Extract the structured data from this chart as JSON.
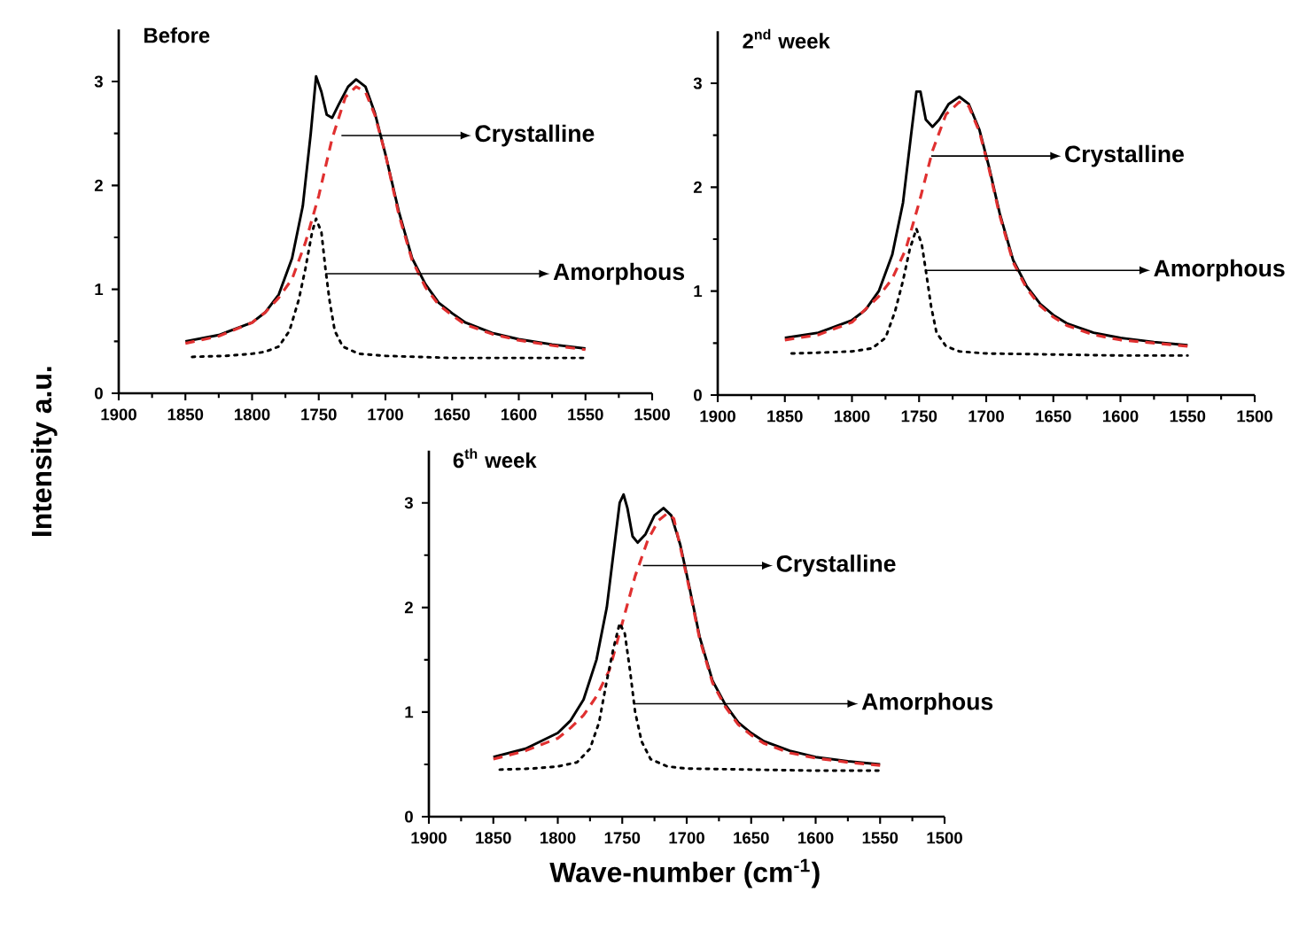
{
  "chart_data": [
    {
      "type": "line",
      "title": "Before",
      "ylabel": "Intensity a.u.",
      "xlim": [
        1900,
        1500
      ],
      "ylim": [
        0,
        3.5
      ],
      "xticks": [
        1900,
        1850,
        1800,
        1750,
        1700,
        1650,
        1600,
        1550,
        1500
      ],
      "yticks": [
        0,
        1,
        2,
        3
      ],
      "series": [
        {
          "color": "#000000",
          "line_style": "solid",
          "x": [
            1850,
            1825,
            1800,
            1790,
            1780,
            1770,
            1762,
            1756,
            1752,
            1748,
            1744,
            1740,
            1735,
            1728,
            1722,
            1715,
            1708,
            1700,
            1690,
            1680,
            1670,
            1660,
            1650,
            1640,
            1620,
            1600,
            1575,
            1550
          ],
          "values": [
            0.5,
            0.56,
            0.68,
            0.78,
            0.95,
            1.3,
            1.8,
            2.5,
            3.05,
            2.9,
            2.68,
            2.65,
            2.78,
            2.95,
            3.02,
            2.95,
            2.7,
            2.3,
            1.75,
            1.3,
            1.05,
            0.87,
            0.77,
            0.68,
            0.58,
            0.52,
            0.47,
            0.43
          ]
        },
        {
          "color": "#e03030",
          "line_style": "dashed",
          "x": [
            1850,
            1825,
            1800,
            1790,
            1780,
            1770,
            1760,
            1750,
            1740,
            1730,
            1722,
            1715,
            1708,
            1700,
            1690,
            1680,
            1670,
            1660,
            1650,
            1640,
            1620,
            1600,
            1575,
            1550
          ],
          "values": [
            0.48,
            0.55,
            0.68,
            0.78,
            0.92,
            1.1,
            1.45,
            1.9,
            2.45,
            2.85,
            2.95,
            2.9,
            2.68,
            2.3,
            1.72,
            1.28,
            1.02,
            0.85,
            0.75,
            0.66,
            0.57,
            0.51,
            0.46,
            0.42
          ]
        },
        {
          "color": "#000000",
          "line_style": "dotted",
          "x": [
            1845,
            1820,
            1800,
            1790,
            1780,
            1772,
            1765,
            1760,
            1755,
            1752,
            1748,
            1745,
            1742,
            1738,
            1732,
            1720,
            1700,
            1650,
            1600,
            1550
          ],
          "values": [
            0.35,
            0.36,
            0.38,
            0.4,
            0.45,
            0.6,
            0.9,
            1.2,
            1.55,
            1.68,
            1.55,
            1.2,
            0.9,
            0.6,
            0.45,
            0.38,
            0.36,
            0.34,
            0.34,
            0.34
          ]
        }
      ],
      "annotations": [
        {
          "text": "Crystalline",
          "x": 1733,
          "y": 2.48
        },
        {
          "text": "Amorphous",
          "x": 1745,
          "y": 1.15
        }
      ]
    },
    {
      "type": "line",
      "title": "2$^{nd}$ week",
      "xlim": [
        1900,
        1500
      ],
      "ylim": [
        0,
        3.5
      ],
      "xticks": [
        1900,
        1850,
        1800,
        1750,
        1700,
        1650,
        1600,
        1550,
        1500
      ],
      "yticks": [
        0,
        1,
        2,
        3
      ],
      "series": [
        {
          "color": "#000000",
          "line_style": "solid",
          "x": [
            1850,
            1825,
            1800,
            1790,
            1780,
            1770,
            1762,
            1756,
            1752,
            1749,
            1745,
            1740,
            1735,
            1728,
            1720,
            1713,
            1705,
            1698,
            1690,
            1680,
            1670,
            1660,
            1650,
            1640,
            1620,
            1600,
            1575,
            1550
          ],
          "values": [
            0.55,
            0.6,
            0.72,
            0.82,
            1.0,
            1.35,
            1.85,
            2.5,
            2.92,
            2.92,
            2.65,
            2.58,
            2.65,
            2.8,
            2.87,
            2.8,
            2.55,
            2.2,
            1.75,
            1.3,
            1.05,
            0.88,
            0.77,
            0.69,
            0.6,
            0.55,
            0.51,
            0.48
          ]
        },
        {
          "color": "#e03030",
          "line_style": "dashed",
          "x": [
            1850,
            1825,
            1800,
            1780,
            1770,
            1760,
            1750,
            1740,
            1730,
            1720,
            1713,
            1705,
            1698,
            1690,
            1680,
            1670,
            1660,
            1650,
            1640,
            1620,
            1600,
            1575,
            1550
          ],
          "values": [
            0.53,
            0.58,
            0.7,
            0.95,
            1.12,
            1.4,
            1.85,
            2.35,
            2.7,
            2.82,
            2.78,
            2.53,
            2.18,
            1.73,
            1.28,
            1.03,
            0.86,
            0.75,
            0.67,
            0.58,
            0.53,
            0.5,
            0.47
          ]
        },
        {
          "color": "#000000",
          "line_style": "dotted",
          "x": [
            1845,
            1820,
            1800,
            1785,
            1775,
            1768,
            1762,
            1757,
            1752,
            1748,
            1745,
            1741,
            1737,
            1730,
            1720,
            1700,
            1650,
            1600,
            1550
          ],
          "values": [
            0.4,
            0.41,
            0.42,
            0.45,
            0.55,
            0.8,
            1.1,
            1.4,
            1.6,
            1.45,
            1.2,
            0.85,
            0.6,
            0.47,
            0.42,
            0.4,
            0.39,
            0.38,
            0.38
          ]
        }
      ],
      "annotations": [
        {
          "text": "Crystalline",
          "x": 1741,
          "y": 2.3
        },
        {
          "text": "Amorphous",
          "x": 1745,
          "y": 1.2
        }
      ]
    },
    {
      "type": "line",
      "title": "6$^{th}$ week",
      "xlabel": "Wave-number (cm$^{-1}$)",
      "xlim": [
        1900,
        1500
      ],
      "ylim": [
        0,
        3.5
      ],
      "xticks": [
        1900,
        1850,
        1800,
        1750,
        1700,
        1650,
        1600,
        1550,
        1500
      ],
      "yticks": [
        0,
        1,
        2,
        3
      ],
      "series": [
        {
          "color": "#000000",
          "line_style": "solid",
          "x": [
            1850,
            1825,
            1800,
            1790,
            1780,
            1770,
            1762,
            1756,
            1752,
            1749,
            1746,
            1742,
            1738,
            1732,
            1725,
            1718,
            1712,
            1705,
            1698,
            1690,
            1680,
            1670,
            1660,
            1650,
            1640,
            1620,
            1600,
            1575,
            1550
          ],
          "values": [
            0.57,
            0.65,
            0.8,
            0.92,
            1.12,
            1.5,
            2.0,
            2.6,
            3.0,
            3.08,
            2.95,
            2.68,
            2.62,
            2.7,
            2.88,
            2.95,
            2.88,
            2.6,
            2.2,
            1.72,
            1.3,
            1.07,
            0.9,
            0.8,
            0.72,
            0.63,
            0.57,
            0.53,
            0.5
          ]
        },
        {
          "color": "#e03030",
          "line_style": "dashed",
          "x": [
            1850,
            1825,
            1800,
            1790,
            1780,
            1770,
            1760,
            1750,
            1740,
            1730,
            1722,
            1715,
            1710,
            1705,
            1698,
            1690,
            1680,
            1670,
            1660,
            1650,
            1640,
            1620,
            1600,
            1575,
            1550
          ],
          "values": [
            0.55,
            0.63,
            0.75,
            0.85,
            0.97,
            1.15,
            1.4,
            1.85,
            2.3,
            2.65,
            2.83,
            2.9,
            2.85,
            2.58,
            2.18,
            1.7,
            1.28,
            1.05,
            0.88,
            0.78,
            0.7,
            0.61,
            0.56,
            0.52,
            0.49
          ]
        },
        {
          "color": "#000000",
          "line_style": "dotted",
          "x": [
            1845,
            1820,
            1800,
            1785,
            1775,
            1768,
            1762,
            1757,
            1752,
            1748,
            1744,
            1740,
            1735,
            1728,
            1715,
            1700,
            1650,
            1600,
            1550
          ],
          "values": [
            0.45,
            0.46,
            0.48,
            0.52,
            0.65,
            0.9,
            1.3,
            1.6,
            1.85,
            1.75,
            1.4,
            1.0,
            0.72,
            0.55,
            0.48,
            0.46,
            0.45,
            0.44,
            0.44
          ]
        }
      ],
      "annotations": [
        {
          "text": "Crystalline",
          "x": 1734,
          "y": 2.4
        },
        {
          "text": "Amorphous",
          "x": 1741,
          "y": 1.08
        }
      ]
    }
  ]
}
